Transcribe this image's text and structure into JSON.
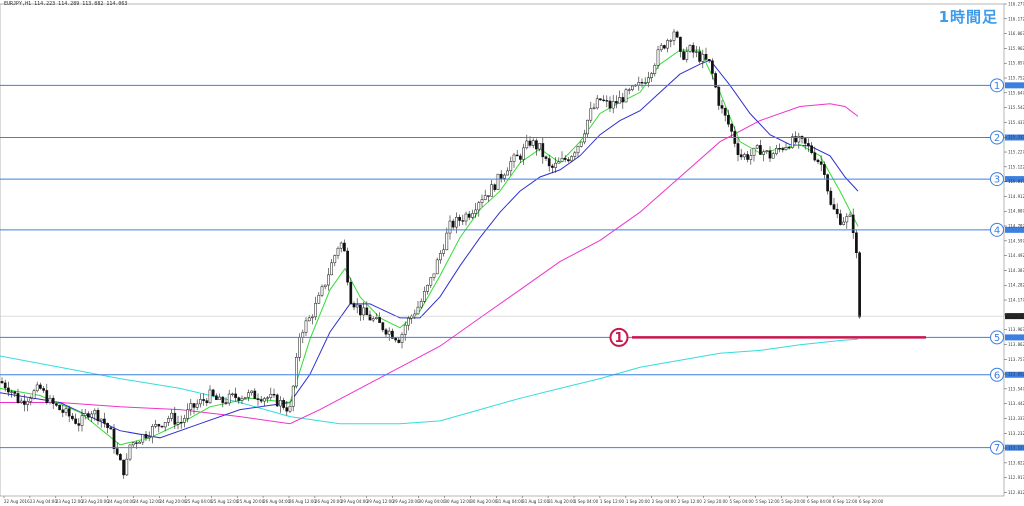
{
  "header": {
    "symbol_info": "EURJPY,H1  114.223 114.289 113.882 114.063",
    "timeframe_label": "1時間足"
  },
  "chart_data": {
    "type": "candlestick",
    "symbol": "EURJPY",
    "timeframe": "H1",
    "ylim": [
      112.787,
      116.277
    ],
    "y_ticks": [
      116.277,
      116.172,
      116.067,
      115.962,
      115.857,
      115.752,
      115.647,
      115.542,
      115.437,
      115.332,
      115.227,
      115.122,
      115.017,
      114.912,
      114.807,
      114.702,
      114.597,
      114.492,
      114.387,
      114.282,
      114.177,
      114.072,
      113.967,
      113.862,
      113.757,
      113.652,
      113.547,
      113.442,
      113.337,
      113.232,
      113.127,
      113.022,
      112.917,
      112.812
    ],
    "x_labels": [
      "22 Aug 2016",
      "23 Aug 04:00",
      "23 Aug 12:00",
      "23 Aug 20:00",
      "24 Aug 04:00",
      "24 Aug 12:00",
      "24 Aug 20:00",
      "25 Aug 04:00",
      "25 Aug 12:00",
      "25 Aug 20:00",
      "26 Aug 04:00",
      "26 Aug 12:00",
      "26 Aug 20:00",
      "29 Aug 04:00",
      "29 Aug 12:00",
      "29 Aug 20:00",
      "30 Aug 04:00",
      "30 Aug 12:00",
      "30 Aug 20:00",
      "31 Aug 04:00",
      "31 Aug 12:00",
      "31 Aug 20:00",
      "1 Sep 04:00",
      "1 Sep 12:00",
      "1 Sep 20:00",
      "2 Sep 04:00",
      "2 Sep 12:00",
      "2 Sep 20:00",
      "5 Sep 04:00",
      "5 Sep 12:00",
      "5 Sep 20:00",
      "6 Sep 04:00",
      "6 Sep 12:00",
      "6 Sep 20:00"
    ],
    "current_price": 114.063,
    "horizontal_levels": [
      {
        "label": "1",
        "price": 115.7
      },
      {
        "label": "2",
        "price": 115.33
      },
      {
        "label": "3",
        "price": 115.035
      },
      {
        "label": "4",
        "price": 114.675
      },
      {
        "label": "5",
        "price": 113.912
      },
      {
        "label": "6",
        "price": 113.647
      },
      {
        "label": "7",
        "price": 113.13
      }
    ],
    "annotation": {
      "label": "1",
      "price": 113.912,
      "color": "#c8174e"
    },
    "line_color": "#3d7fe0",
    "ma_colors": {
      "fast": "#33dd33",
      "mid": "#3030d0",
      "slow": "#ee33cc",
      "longest": "#33dddd"
    },
    "series_points": {
      "close_path": [
        [
          0,
          113.6
        ],
        [
          10,
          113.55
        ],
        [
          20,
          113.45
        ],
        [
          30,
          113.5
        ],
        [
          40,
          113.55
        ],
        [
          50,
          113.45
        ],
        [
          60,
          113.4
        ],
        [
          70,
          113.35
        ],
        [
          80,
          113.3
        ],
        [
          90,
          113.4
        ],
        [
          100,
          113.35
        ],
        [
          110,
          113.25
        ],
        [
          118,
          113.05
        ],
        [
          125,
          112.95
        ],
        [
          130,
          113.15
        ],
        [
          140,
          113.2
        ],
        [
          150,
          113.25
        ],
        [
          160,
          113.3
        ],
        [
          170,
          113.35
        ],
        [
          180,
          113.3
        ],
        [
          190,
          113.4
        ],
        [
          200,
          113.45
        ],
        [
          210,
          113.5
        ],
        [
          220,
          113.45
        ],
        [
          230,
          113.48
        ],
        [
          240,
          113.5
        ],
        [
          250,
          113.5
        ],
        [
          260,
          113.5
        ],
        [
          270,
          113.48
        ],
        [
          280,
          113.45
        ],
        [
          290,
          113.4
        ],
        [
          295,
          113.65
        ],
        [
          300,
          113.95
        ],
        [
          305,
          114.0
        ],
        [
          310,
          114.05
        ],
        [
          320,
          114.2
        ],
        [
          330,
          114.4
        ],
        [
          340,
          114.6
        ],
        [
          345,
          114.5
        ],
        [
          350,
          114.2
        ],
        [
          360,
          114.1
        ],
        [
          370,
          114.05
        ],
        [
          380,
          114.0
        ],
        [
          390,
          113.95
        ],
        [
          400,
          113.9
        ],
        [
          405,
          114.0
        ],
        [
          410,
          114.05
        ],
        [
          420,
          114.15
        ],
        [
          430,
          114.3
        ],
        [
          440,
          114.5
        ],
        [
          450,
          114.7
        ],
        [
          460,
          114.75
        ],
        [
          470,
          114.8
        ],
        [
          480,
          114.9
        ],
        [
          490,
          114.95
        ],
        [
          500,
          115.05
        ],
        [
          510,
          115.15
        ],
        [
          520,
          115.2
        ],
        [
          530,
          115.3
        ],
        [
          540,
          115.25
        ],
        [
          550,
          115.1
        ],
        [
          560,
          115.15
        ],
        [
          570,
          115.2
        ],
        [
          580,
          115.3
        ],
        [
          590,
          115.5
        ],
        [
          600,
          115.6
        ],
        [
          610,
          115.55
        ],
        [
          620,
          115.6
        ],
        [
          630,
          115.65
        ],
        [
          640,
          115.7
        ],
        [
          650,
          115.8
        ],
        [
          660,
          115.95
        ],
        [
          670,
          116.05
        ],
        [
          675,
          116.1
        ],
        [
          680,
          115.9
        ],
        [
          690,
          115.95
        ],
        [
          700,
          115.9
        ],
        [
          710,
          115.85
        ],
        [
          715,
          115.7
        ],
        [
          720,
          115.55
        ],
        [
          730,
          115.4
        ],
        [
          740,
          115.2
        ],
        [
          750,
          115.2
        ],
        [
          760,
          115.25
        ],
        [
          770,
          115.2
        ],
        [
          780,
          115.25
        ],
        [
          790,
          115.3
        ],
        [
          800,
          115.3
        ],
        [
          810,
          115.25
        ],
        [
          820,
          115.15
        ],
        [
          825,
          115.1
        ],
        [
          830,
          114.85
        ],
        [
          840,
          114.75
        ],
        [
          850,
          114.75
        ],
        [
          855,
          114.65
        ],
        [
          858,
          114.3
        ],
        [
          860,
          114.0
        ]
      ],
      "ma_fast": [
        [
          0,
          113.55
        ],
        [
          40,
          113.5
        ],
        [
          80,
          113.38
        ],
        [
          120,
          113.15
        ],
        [
          150,
          113.2
        ],
        [
          180,
          113.3
        ],
        [
          210,
          113.42
        ],
        [
          250,
          113.48
        ],
        [
          290,
          113.45
        ],
        [
          310,
          113.9
        ],
        [
          330,
          114.25
        ],
        [
          345,
          114.4
        ],
        [
          360,
          114.2
        ],
        [
          380,
          114.05
        ],
        [
          400,
          113.98
        ],
        [
          420,
          114.1
        ],
        [
          440,
          114.35
        ],
        [
          460,
          114.62
        ],
        [
          480,
          114.82
        ],
        [
          500,
          114.95
        ],
        [
          520,
          115.15
        ],
        [
          540,
          115.25
        ],
        [
          560,
          115.15
        ],
        [
          580,
          115.3
        ],
        [
          600,
          115.5
        ],
        [
          620,
          115.58
        ],
        [
          640,
          115.65
        ],
        [
          660,
          115.85
        ],
        [
          680,
          115.95
        ],
        [
          700,
          115.95
        ],
        [
          720,
          115.65
        ],
        [
          740,
          115.3
        ],
        [
          760,
          115.22
        ],
        [
          780,
          115.25
        ],
        [
          800,
          115.28
        ],
        [
          820,
          115.2
        ],
        [
          840,
          114.95
        ],
        [
          858,
          114.7
        ]
      ],
      "ma_mid": [
        [
          0,
          113.52
        ],
        [
          60,
          113.45
        ],
        [
          120,
          113.25
        ],
        [
          160,
          113.2
        ],
        [
          200,
          113.3
        ],
        [
          240,
          113.4
        ],
        [
          290,
          113.45
        ],
        [
          310,
          113.65
        ],
        [
          330,
          113.95
        ],
        [
          350,
          114.15
        ],
        [
          370,
          114.15
        ],
        [
          400,
          114.05
        ],
        [
          420,
          114.05
        ],
        [
          440,
          114.2
        ],
        [
          460,
          114.42
        ],
        [
          480,
          114.62
        ],
        [
          500,
          114.8
        ],
        [
          520,
          114.95
        ],
        [
          540,
          115.05
        ],
        [
          560,
          115.1
        ],
        [
          580,
          115.2
        ],
        [
          600,
          115.35
        ],
        [
          620,
          115.45
        ],
        [
          640,
          115.52
        ],
        [
          660,
          115.65
        ],
        [
          680,
          115.78
        ],
        [
          700,
          115.85
        ],
        [
          710,
          115.88
        ],
        [
          730,
          115.7
        ],
        [
          750,
          115.5
        ],
        [
          770,
          115.35
        ],
        [
          790,
          115.28
        ],
        [
          810,
          115.27
        ],
        [
          830,
          115.2
        ],
        [
          845,
          115.05
        ],
        [
          858,
          114.95
        ]
      ],
      "ma_slow": [
        [
          0,
          113.45
        ],
        [
          60,
          113.45
        ],
        [
          120,
          113.42
        ],
        [
          180,
          113.4
        ],
        [
          240,
          113.35
        ],
        [
          290,
          113.3
        ],
        [
          320,
          113.4
        ],
        [
          360,
          113.55
        ],
        [
          400,
          113.7
        ],
        [
          440,
          113.85
        ],
        [
          480,
          114.05
        ],
        [
          520,
          114.25
        ],
        [
          560,
          114.45
        ],
        [
          600,
          114.6
        ],
        [
          640,
          114.8
        ],
        [
          680,
          115.05
        ],
        [
          720,
          115.3
        ],
        [
          760,
          115.45
        ],
        [
          800,
          115.55
        ],
        [
          830,
          115.57
        ],
        [
          845,
          115.55
        ],
        [
          858,
          115.48
        ]
      ],
      "ma_longest": [
        [
          0,
          113.78
        ],
        [
          60,
          113.7
        ],
        [
          120,
          113.62
        ],
        [
          180,
          113.55
        ],
        [
          240,
          113.45
        ],
        [
          290,
          113.35
        ],
        [
          340,
          113.3
        ],
        [
          400,
          113.3
        ],
        [
          440,
          113.32
        ],
        [
          480,
          113.4
        ],
        [
          520,
          113.48
        ],
        [
          560,
          113.55
        ],
        [
          600,
          113.62
        ],
        [
          640,
          113.7
        ],
        [
          680,
          113.75
        ],
        [
          720,
          113.8
        ],
        [
          760,
          113.82
        ],
        [
          800,
          113.86
        ],
        [
          840,
          113.89
        ],
        [
          858,
          113.9
        ]
      ]
    }
  }
}
